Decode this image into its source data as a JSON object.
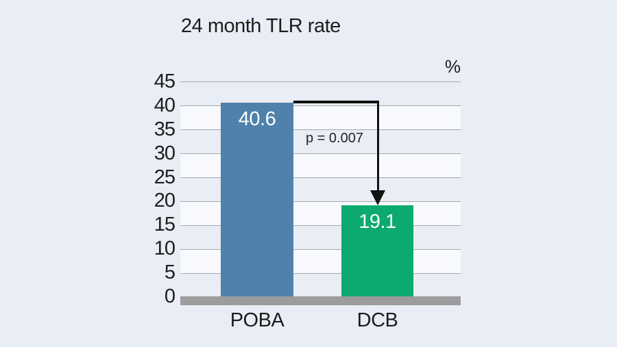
{
  "title": "24 month TLR rate",
  "unit_label": "%",
  "chart_data": {
    "type": "bar",
    "title": "24 month TLR rate",
    "unit": "%",
    "categories": [
      "POBA",
      "DCB"
    ],
    "values": [
      40.6,
      19.1
    ],
    "value_labels": [
      "40.6",
      "19.1"
    ],
    "bar_colors": [
      "#4f81ab",
      "#0caa70"
    ],
    "annotation": "p = 0.007",
    "ylabel": "",
    "xlabel": "",
    "ylim": [
      0,
      45
    ],
    "ytick_step": 5,
    "grid": true,
    "legend": "none",
    "background": "#e9edf6",
    "band_colors": [
      "#e9edf6",
      "#f8fafd"
    ],
    "gridline_color": "#a2a6ac",
    "baseline_color": "#9c9c9c",
    "arrow_color": "#111111"
  },
  "axis": {
    "ticks": [
      "45",
      "40",
      "35",
      "30",
      "25",
      "20",
      "15",
      "10",
      "5",
      "0"
    ]
  }
}
